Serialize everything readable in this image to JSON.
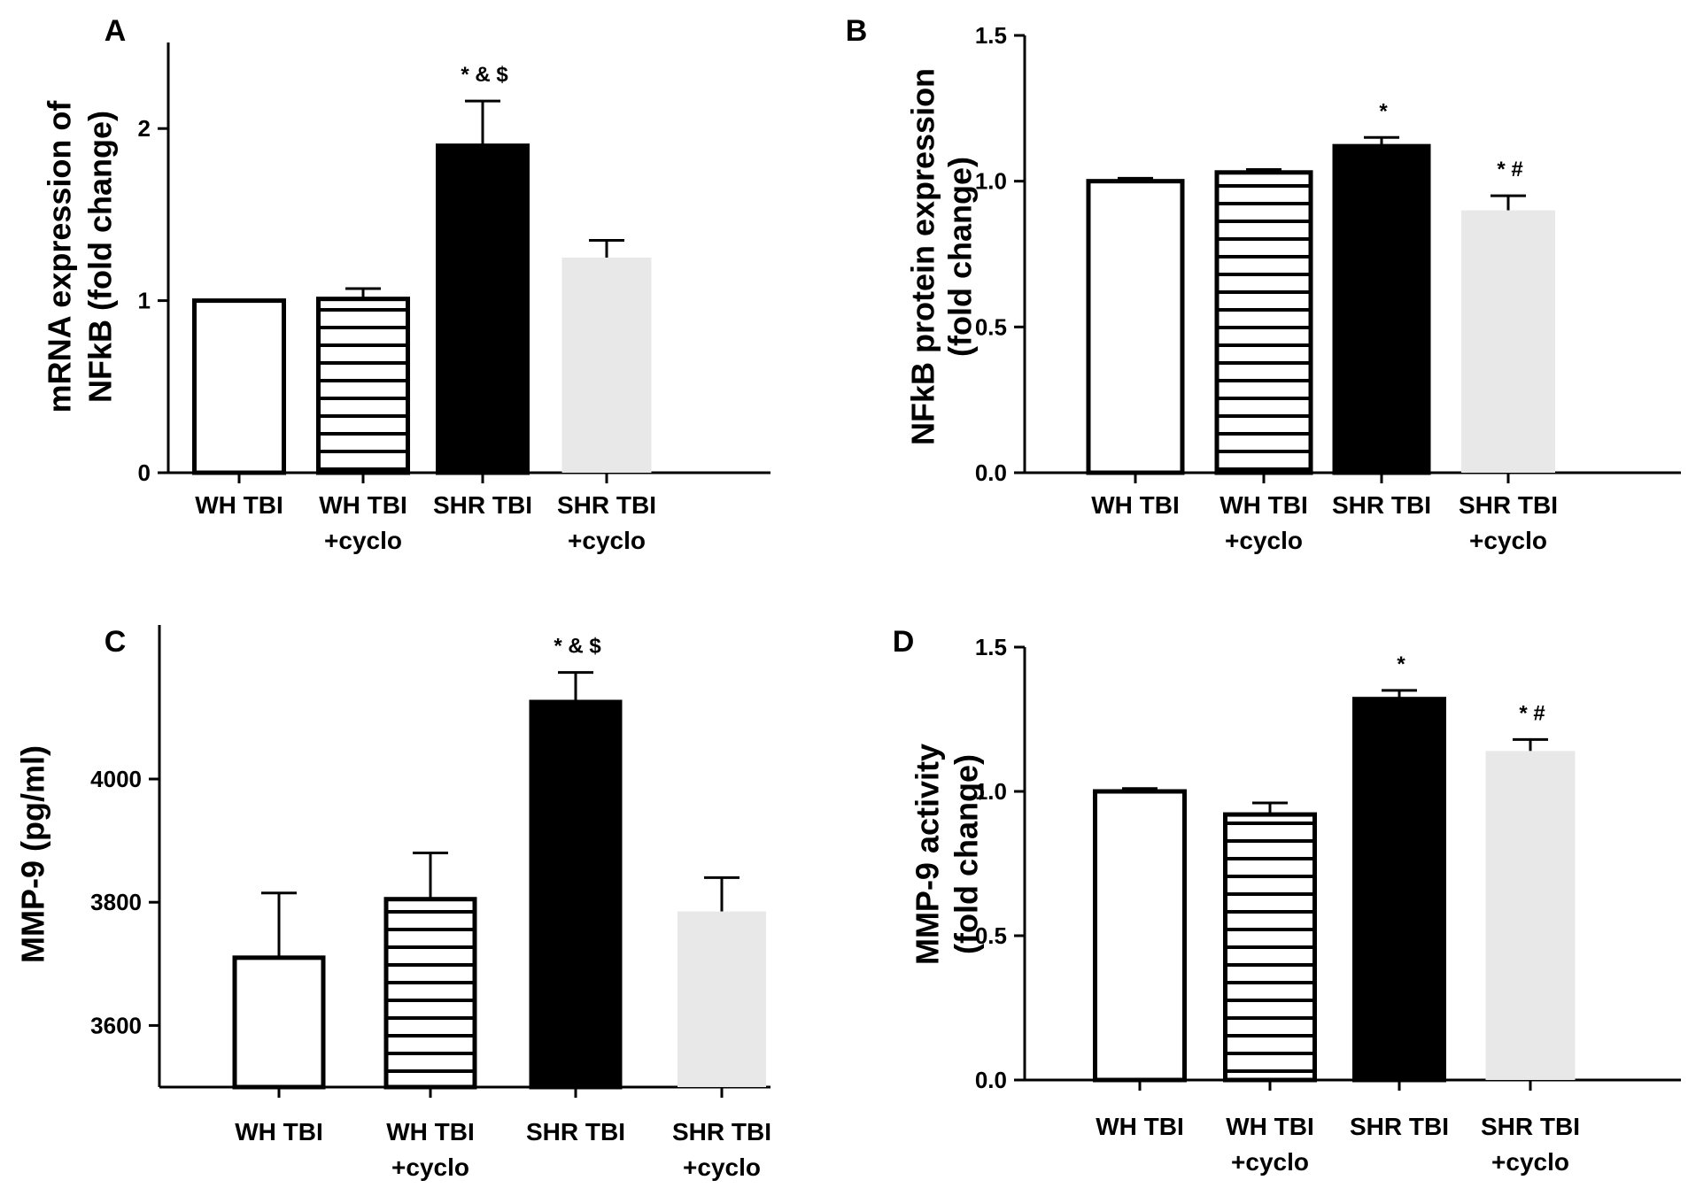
{
  "colors": {
    "axis": "#000000",
    "bar_white": "#ffffff",
    "bar_black": "#000000",
    "bar_light_gray": "#e8e8e8"
  },
  "chart_data": [
    {
      "panel": "A",
      "type": "bar",
      "ylabel": [
        "mRNA expression of",
        "NFkB (fold change)"
      ],
      "ylim": [
        0,
        2.5
      ],
      "yticks": [
        0,
        1,
        2
      ],
      "tick_format": "integer",
      "categories": [
        [
          "WH TBI"
        ],
        [
          "WH TBI",
          "+cyclo"
        ],
        [
          "SHR TBI"
        ],
        [
          "SHR TBI",
          "+cyclo"
        ]
      ],
      "values": [
        1.0,
        1.01,
        1.9,
        1.25
      ],
      "errors": [
        0.0,
        0.06,
        0.26,
        0.1
      ],
      "fills": [
        "white",
        "hatched",
        "black",
        "lightgray"
      ],
      "annotations": [
        "",
        "",
        "* & $",
        ""
      ]
    },
    {
      "panel": "B",
      "type": "bar",
      "ylabel": [
        "NFkB protein expression",
        "(fold change)"
      ],
      "ylim": [
        0,
        1.5
      ],
      "yticks": [
        0.0,
        0.5,
        1.0,
        1.5
      ],
      "tick_format": "one_decimal",
      "categories": [
        [
          "WH TBI"
        ],
        [
          "WH TBI",
          "+cyclo"
        ],
        [
          "SHR TBI"
        ],
        [
          "SHR TBI",
          "+cyclo"
        ]
      ],
      "values": [
        1.0,
        1.03,
        1.12,
        0.9
      ],
      "errors": [
        0.01,
        0.01,
        0.03,
        0.05
      ],
      "fills": [
        "white",
        "hatched",
        "black",
        "lightgray"
      ],
      "annotations": [
        "",
        "",
        "*",
        "* #"
      ]
    },
    {
      "panel": "C",
      "type": "bar",
      "ylabel": [
        "MMP-9 (pg/ml)"
      ],
      "ylim": [
        3500,
        4250
      ],
      "yticks": [
        3600,
        3800,
        4000
      ],
      "tick_format": "integer",
      "categories": [
        [
          "WH TBI"
        ],
        [
          "WH TBI",
          "+cyclo"
        ],
        [
          "SHR TBI"
        ],
        [
          "SHR TBI",
          "+cyclo"
        ]
      ],
      "values": [
        3710,
        3805,
        4125,
        3785
      ],
      "errors": [
        105,
        75,
        48,
        55
      ],
      "fills": [
        "white",
        "hatched",
        "black",
        "lightgray"
      ],
      "annotations": [
        "",
        "",
        "* & $",
        ""
      ]
    },
    {
      "panel": "D",
      "type": "bar",
      "ylabel": [
        "MMP-9 activity",
        "(fold change)"
      ],
      "ylim": [
        0,
        1.5
      ],
      "yticks": [
        0.0,
        0.5,
        1.0,
        1.5
      ],
      "tick_format": "one_decimal",
      "categories": [
        [
          "WH TBI"
        ],
        [
          "WH TBI",
          "+cyclo"
        ],
        [
          "SHR TBI"
        ],
        [
          "SHR TBI",
          "+cyclo"
        ]
      ],
      "values": [
        1.0,
        0.92,
        1.32,
        1.14
      ],
      "errors": [
        0.01,
        0.04,
        0.03,
        0.04
      ],
      "fills": [
        "white",
        "hatched",
        "black",
        "lightgray"
      ],
      "annotations": [
        "",
        "",
        "*",
        "* #"
      ]
    }
  ]
}
